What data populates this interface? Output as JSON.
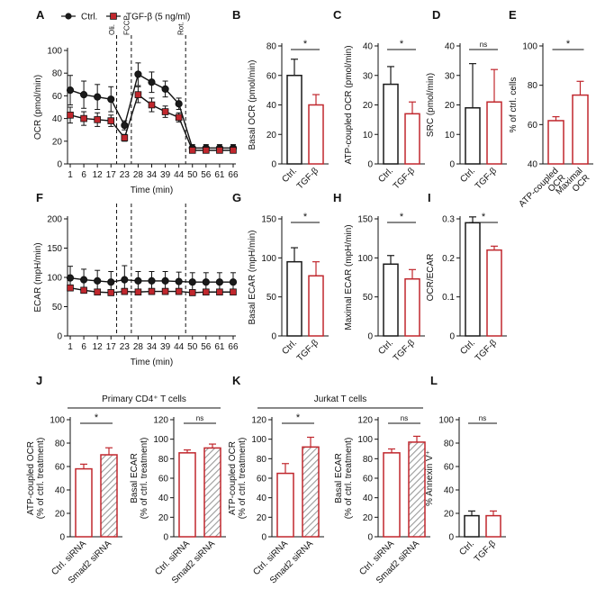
{
  "colors": {
    "ctrl": "#1a1a1a",
    "tgf": "#c0272d",
    "ctrl_fill": "#ffffff",
    "tgf_fill": "#c0272d",
    "hatch": "#9a9a9a"
  },
  "chart_data": [
    {
      "panel": "A",
      "type": "line",
      "legend": [
        {
          "name": "Ctrl.",
          "marker": "circle"
        },
        {
          "name": "TGF-β (5 ng/ml)",
          "marker": "square"
        }
      ],
      "x": [
        1,
        6,
        12,
        17,
        23,
        28,
        34,
        39,
        44,
        50,
        56,
        61,
        66
      ],
      "series": [
        {
          "name": "Ctrl.",
          "values": [
            65,
            61,
            59,
            57,
            34,
            79,
            72,
            66,
            53,
            14,
            14,
            14,
            14
          ],
          "err": [
            13,
            12,
            11,
            11,
            4,
            10,
            9,
            7,
            5,
            3,
            3,
            3,
            3
          ]
        },
        {
          "name": "TGF-β (5 ng/ml)",
          "values": [
            43,
            40,
            39,
            38,
            23,
            61,
            52,
            46,
            41,
            12,
            12,
            12,
            12
          ],
          "err": [
            7,
            6,
            6,
            5,
            3,
            7,
            6,
            5,
            4,
            2,
            2,
            2,
            2
          ]
        }
      ],
      "ylabel": "OCR (pmol/min)",
      "xlabel": "Time (min)",
      "ylim": [
        0,
        100
      ],
      "yticks": [
        0,
        20,
        40,
        60,
        80,
        100
      ],
      "injections": [
        {
          "label": "Oli.",
          "x": 19.5
        },
        {
          "label": "FCCP",
          "x": 25.5
        },
        {
          "label": "Rot.",
          "x": 47
        }
      ]
    },
    {
      "panel": "B",
      "type": "bar",
      "categories": [
        "Ctrl.",
        "TGF-β"
      ],
      "values": [
        60,
        40
      ],
      "err": [
        11,
        7
      ],
      "ylabel": "Basal OCR (pmol/min)",
      "ylim": [
        0,
        80
      ],
      "yticks": [
        0,
        20,
        40,
        60,
        80
      ],
      "significance": "*"
    },
    {
      "panel": "C",
      "type": "bar",
      "categories": [
        "Ctrl.",
        "TGF-β"
      ],
      "values": [
        27,
        17
      ],
      "err": [
        6,
        4
      ],
      "ylabel": "ATP-coupled OCR (pmol/min)",
      "ylim": [
        0,
        40
      ],
      "yticks": [
        0,
        10,
        20,
        30,
        40
      ],
      "significance": "*"
    },
    {
      "panel": "D",
      "type": "bar",
      "categories": [
        "Ctrl.",
        "TGF-β"
      ],
      "values": [
        19,
        21
      ],
      "err": [
        15,
        11
      ],
      "ylabel": "SRC (pmol/min)",
      "ylim": [
        0,
        40
      ],
      "yticks": [
        0,
        10,
        20,
        30,
        40
      ],
      "significance": "ns"
    },
    {
      "panel": "E",
      "type": "bar",
      "categories": [
        "ATP-coupled OCR",
        "Maximal OCR"
      ],
      "values": [
        62,
        75
      ],
      "err": [
        2,
        7
      ],
      "ylabel": "% of ctrl. cells",
      "ylim": [
        40,
        100
      ],
      "yticks": [
        40,
        60,
        80,
        100
      ],
      "significance": "*"
    },
    {
      "panel": "F",
      "type": "line",
      "x": [
        1,
        6,
        12,
        17,
        23,
        28,
        34,
        39,
        44,
        50,
        56,
        61,
        66
      ],
      "series": [
        {
          "name": "Ctrl.",
          "values": [
            99,
            96,
            94,
            92,
            96,
            94,
            94,
            94,
            93,
            92,
            92,
            92,
            92
          ],
          "err": [
            20,
            18,
            18,
            18,
            24,
            16,
            16,
            16,
            16,
            16,
            16,
            16,
            16
          ]
        },
        {
          "name": "TGF-β (5 ng/ml)",
          "values": [
            82,
            78,
            75,
            74,
            76,
            75,
            76,
            76,
            76,
            74,
            75,
            75,
            75
          ],
          "err": [
            5,
            5,
            5,
            5,
            5,
            5,
            5,
            5,
            5,
            5,
            5,
            5,
            5
          ]
        }
      ],
      "ylabel": "ECAR (mpH/min)",
      "xlabel": "Time (min)",
      "ylim": [
        0,
        200
      ],
      "yticks": [
        0,
        50,
        100,
        150,
        200
      ],
      "injections": [
        {
          "label": "",
          "x": 19.5
        },
        {
          "label": "",
          "x": 25.5
        },
        {
          "label": "",
          "x": 47
        }
      ]
    },
    {
      "panel": "G",
      "type": "bar",
      "categories": [
        "Ctrl.",
        "TGF-β"
      ],
      "values": [
        95,
        77
      ],
      "err": [
        18,
        18
      ],
      "ylabel": "Basal ECAR (mpH/min)",
      "ylim": [
        0,
        150
      ],
      "yticks": [
        0,
        50,
        100,
        150
      ],
      "significance": "*"
    },
    {
      "panel": "H",
      "type": "bar",
      "categories": [
        "Ctrl.",
        "TGF-β"
      ],
      "values": [
        92,
        73
      ],
      "err": [
        11,
        12
      ],
      "ylabel": "Maximal ECAR (mpH/min)",
      "ylim": [
        0,
        150
      ],
      "yticks": [
        0,
        50,
        100,
        150
      ],
      "significance": "*"
    },
    {
      "panel": "I",
      "type": "bar",
      "categories": [
        "Ctrl.",
        "TGF-β"
      ],
      "values": [
        0.29,
        0.22
      ],
      "err": [
        0.015,
        0.01
      ],
      "ylabel": "OCR/ECAR",
      "ylim": [
        0,
        0.3
      ],
      "yticks": [
        0,
        0.1,
        0.2,
        0.3
      ],
      "significance": "*"
    },
    {
      "panel": "J1",
      "type": "bar",
      "group": "Primary CD4⁺ T cells",
      "categories": [
        "Ctrl. siRNA",
        "Smad2 siRNA"
      ],
      "values": [
        58,
        70
      ],
      "err": [
        4,
        6
      ],
      "ylabel": "ATP-coupled OCR\n(% of ctrl. treatment)",
      "ylim": [
        0,
        100
      ],
      "yticks": [
        0,
        20,
        40,
        60,
        80,
        100
      ],
      "significance": "*"
    },
    {
      "panel": "J2",
      "type": "bar",
      "group": "Primary CD4⁺ T cells",
      "categories": [
        "Ctrl. siRNA",
        "Smad2 siRNA"
      ],
      "values": [
        86,
        91
      ],
      "err": [
        3,
        4
      ],
      "ylabel": "Basal ECAR\n(% of ctrl. treatment)",
      "ylim": [
        0,
        120
      ],
      "yticks": [
        0,
        20,
        40,
        60,
        80,
        100,
        120
      ],
      "significance": "ns"
    },
    {
      "panel": "K1",
      "type": "bar",
      "group": "Jurkat T cells",
      "categories": [
        "Ctrl. siRNA",
        "Smad2 siRNA"
      ],
      "values": [
        65,
        92
      ],
      "err": [
        10,
        10
      ],
      "ylabel": "ATP-coupled OCR\n(% of ctrl. treatment)",
      "ylim": [
        0,
        120
      ],
      "yticks": [
        0,
        20,
        40,
        60,
        80,
        100,
        120
      ],
      "significance": "*"
    },
    {
      "panel": "K2",
      "type": "bar",
      "group": "Jurkat T cells",
      "categories": [
        "Ctrl. siRNA",
        "Smad2 siRNA"
      ],
      "values": [
        86,
        97
      ],
      "err": [
        4,
        6
      ],
      "ylabel": "Basal ECAR\n(% of ctrl. treatment)",
      "ylim": [
        0,
        120
      ],
      "yticks": [
        0,
        20,
        40,
        60,
        80,
        100,
        120
      ],
      "significance": "ns"
    },
    {
      "panel": "L",
      "type": "bar",
      "categories": [
        "Ctrl.",
        "TGF-β"
      ],
      "values": [
        18,
        18
      ],
      "err": [
        4,
        4
      ],
      "ylabel": "% Annexin V⁺",
      "ylim": [
        0,
        100
      ],
      "yticks": [
        0,
        20,
        40,
        60,
        80,
        100
      ],
      "significance": "ns"
    }
  ]
}
